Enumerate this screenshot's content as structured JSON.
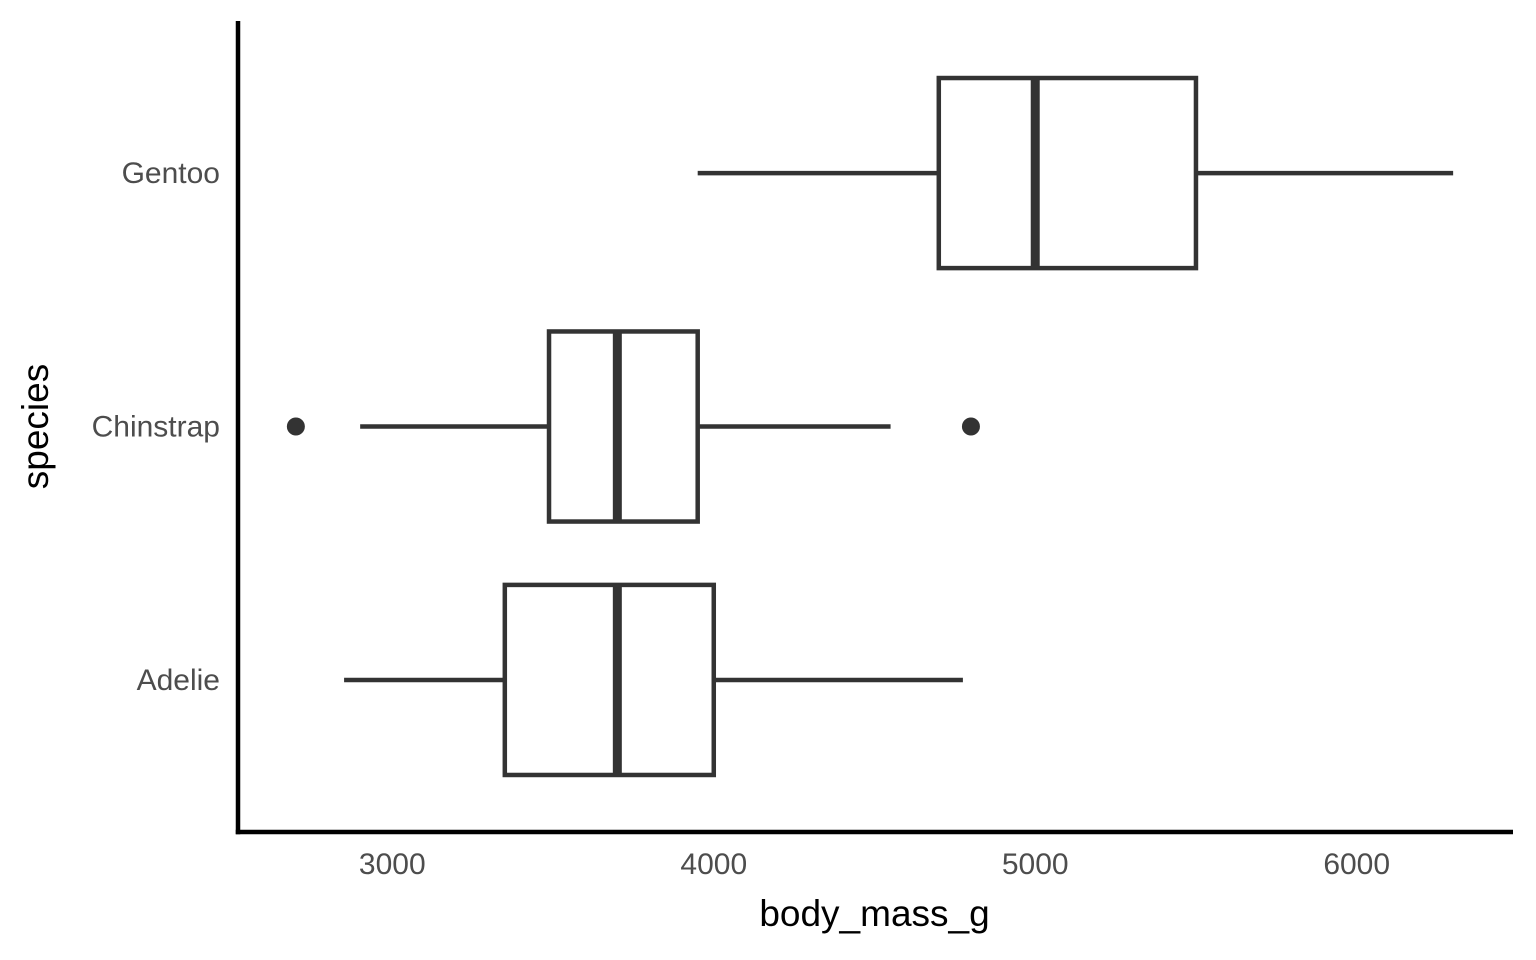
{
  "chart_data": {
    "type": "boxplot",
    "orientation": "horizontal",
    "title": "",
    "xlabel": "body_mass_g",
    "ylabel": "species",
    "x_ticks": [
      3000,
      4000,
      5000,
      6000
    ],
    "xlim": [
      2520,
      6480
    ],
    "categories": [
      "Adelie",
      "Chinstrap",
      "Gentoo"
    ],
    "series": [
      {
        "name": "Adelie",
        "whisker_low": 2850,
        "q1": 3350,
        "median": 3700,
        "q3": 4000,
        "whisker_high": 4775,
        "outliers": []
      },
      {
        "name": "Chinstrap",
        "whisker_low": 2900,
        "q1": 3487.5,
        "median": 3700,
        "q3": 3950,
        "whisker_high": 4550,
        "outliers": [
          2700,
          4800
        ]
      },
      {
        "name": "Gentoo",
        "whisker_low": 3950,
        "q1": 4700,
        "median": 5000,
        "q3": 5500,
        "whisker_high": 6300,
        "outliers": []
      }
    ],
    "legend": "none",
    "grid": "off",
    "colors": {
      "box_stroke": "#333333",
      "box_fill": "#FFFFFF",
      "outlier_fill": "#333333",
      "axis_line": "#000000",
      "tick_label": "#4D4D4D",
      "axis_title": "#000000",
      "background": "#FFFFFF"
    }
  }
}
